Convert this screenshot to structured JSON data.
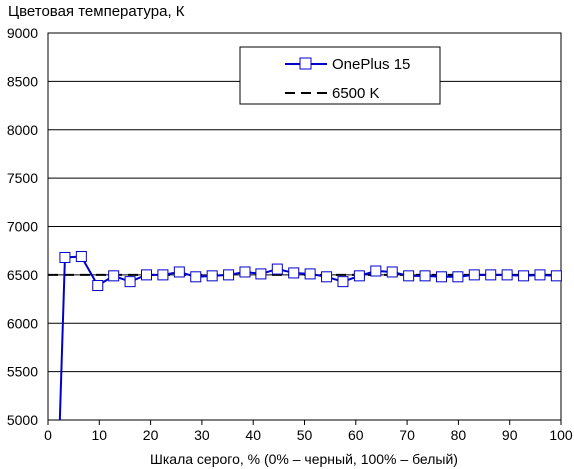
{
  "chart_data": {
    "type": "line",
    "title": "Цветовая температура, К",
    "xlabel": "Шкала серого, % (0% – черный, 100% – белый)",
    "ylabel": "",
    "xlim": [
      0,
      100
    ],
    "ylim": [
      5000,
      9000
    ],
    "x_ticks": [
      0,
      10,
      20,
      30,
      40,
      50,
      60,
      70,
      80,
      90,
      100
    ],
    "y_ticks": [
      5000,
      5500,
      6000,
      6500,
      7000,
      7500,
      8000,
      8500,
      9000
    ],
    "grid": "horizontal",
    "legend_position": "top-right",
    "series": [
      {
        "name": "OnePlus 15",
        "color": "#0000cc",
        "marker": "square",
        "line_style": "solid",
        "x": [
          2.3,
          3.3,
          6.5,
          9.7,
          12.8,
          16.0,
          19.2,
          22.4,
          25.6,
          28.8,
          32.0,
          35.2,
          38.4,
          41.5,
          44.7,
          47.9,
          51.1,
          54.3,
          57.5,
          60.7,
          63.9,
          67.1,
          70.3,
          73.5,
          76.7,
          79.9,
          83.1,
          86.3,
          89.5,
          92.7,
          95.9,
          99.1
        ],
        "y": [
          4990,
          6680,
          6690,
          6390,
          6490,
          6430,
          6500,
          6500,
          6530,
          6480,
          6490,
          6500,
          6530,
          6510,
          6560,
          6520,
          6510,
          6480,
          6430,
          6490,
          6540,
          6530,
          6490,
          6490,
          6480,
          6480,
          6500,
          6500,
          6500,
          6490,
          6500,
          6490
        ]
      },
      {
        "name": "6500 K",
        "color": "#000000",
        "marker": "none",
        "line_style": "dashed",
        "x": [
          0,
          100
        ],
        "y": [
          6500,
          6500
        ]
      }
    ]
  }
}
